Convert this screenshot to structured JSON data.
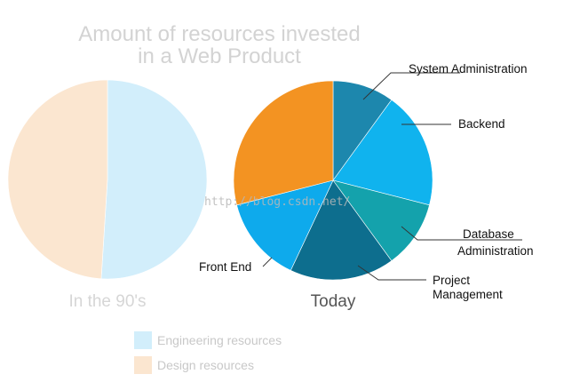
{
  "chart_data": [
    {
      "type": "pie",
      "title": "Amount of resources invested in a Web Product",
      "subtitle": "In the 90's",
      "slices": [
        {
          "label": "Engineering resources",
          "value": 51,
          "color": "#d2eefb"
        },
        {
          "label": "Design resources",
          "value": 49,
          "color": "#fbe6d0"
        }
      ]
    },
    {
      "type": "pie",
      "subtitle": "Today",
      "slices": [
        {
          "label": "System Administration",
          "value": 10,
          "color": "#1d87ad"
        },
        {
          "label": "Backend",
          "value": 19,
          "color": "#10b3ee"
        },
        {
          "label": "Database Administration",
          "value": 11,
          "color": "#14a2ac"
        },
        {
          "label": "Project Management",
          "value": 17,
          "color": "#0d6e8e"
        },
        {
          "label": "Front End",
          "value": 14,
          "color": "#0eaaec"
        },
        {
          "label": "",
          "value": 29,
          "color": "#f39322"
        }
      ]
    }
  ],
  "title_lines": [
    "Amount of resources invested",
    "in a Web Product"
  ],
  "legend": [
    {
      "label": "Engineering resources",
      "color": "#d2eefb"
    },
    {
      "label": "Design resources",
      "color": "#fbe6d0"
    }
  ],
  "label_lines": {
    "system_admin": [
      "System Administration"
    ],
    "backend": [
      "Backend"
    ],
    "database": [
      "Database",
      "Administration"
    ],
    "project": [
      "Project",
      "Management"
    ],
    "frontend": [
      "Front End"
    ]
  },
  "watermark": "http://blog.csdn.net/"
}
